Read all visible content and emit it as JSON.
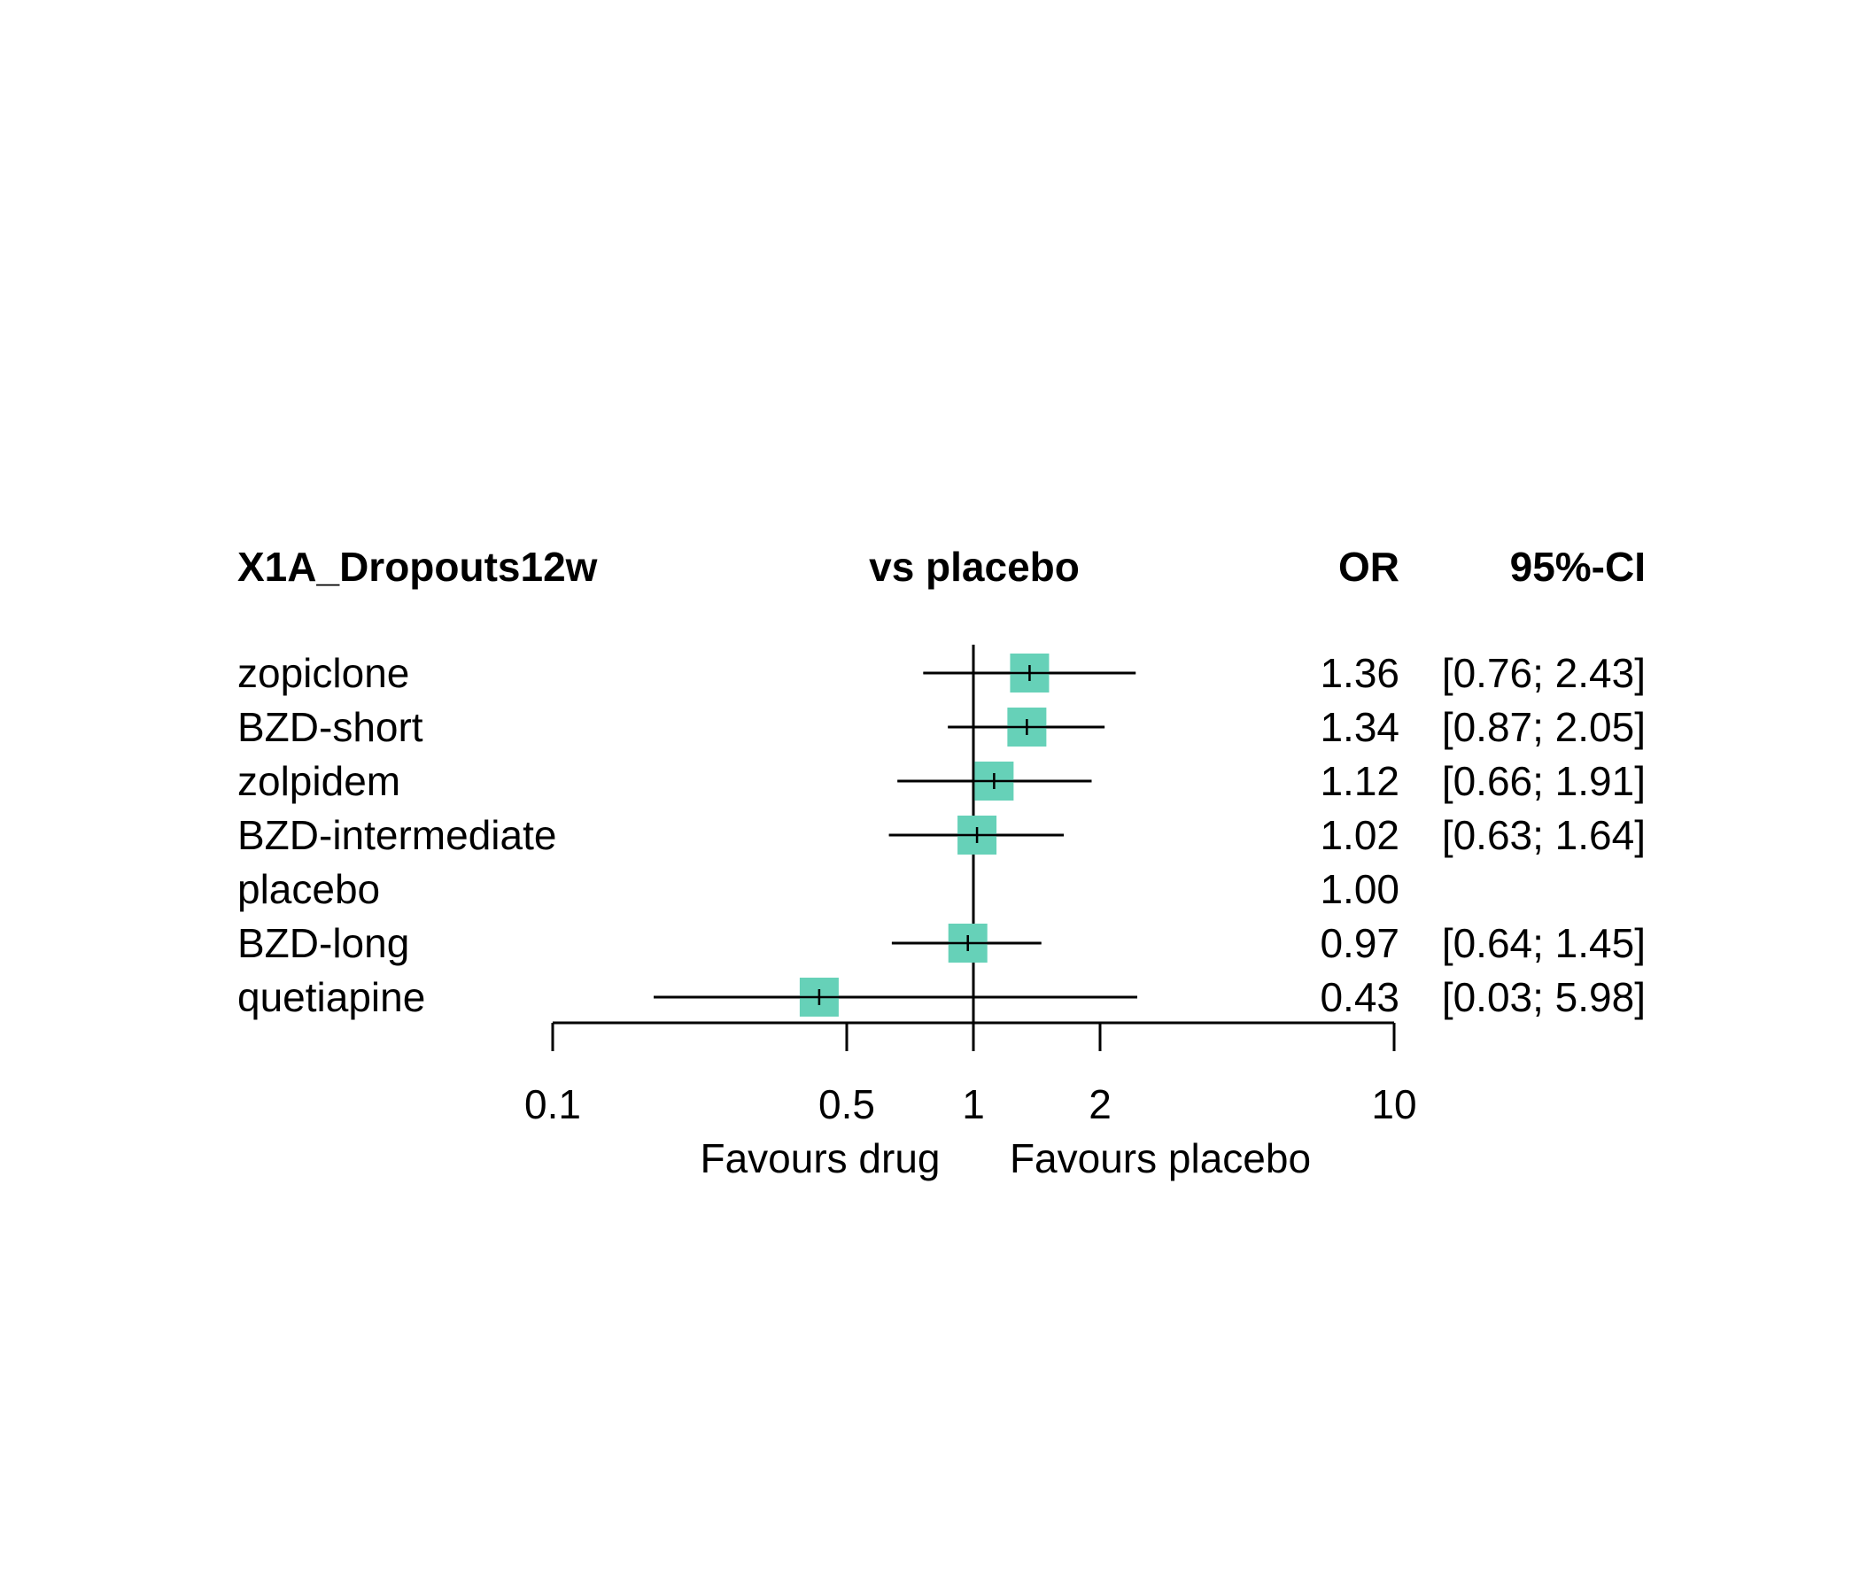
{
  "chart_data": {
    "type": "forest",
    "header": {
      "label_col": "X1A_Dropouts12w",
      "plot_col": "vs placebo",
      "or_col": "OR",
      "ci_col": "95%-CI"
    },
    "scale": "log",
    "reference_value": 1,
    "xlim": [
      0.1,
      10
    ],
    "ticks": [
      {
        "value": 0.1,
        "label": "0.1"
      },
      {
        "value": 0.5,
        "label": "0.5"
      },
      {
        "value": 1,
        "label": "1"
      },
      {
        "value": 2,
        "label": "2"
      },
      {
        "value": 10,
        "label": "10"
      }
    ],
    "xlabel_left": "Favours drug",
    "xlabel_right": "Favours placebo",
    "marker_color": "#66d1b8",
    "rows": [
      {
        "name": "zopiclone",
        "or": 1.36,
        "lo": 0.76,
        "hi": 2.43,
        "or_text": "1.36",
        "ci_text": "[0.76; 2.43]"
      },
      {
        "name": "BZD-short",
        "or": 1.34,
        "lo": 0.87,
        "hi": 2.05,
        "or_text": "1.34",
        "ci_text": "[0.87; 2.05]"
      },
      {
        "name": "zolpidem",
        "or": 1.12,
        "lo": 0.66,
        "hi": 1.91,
        "or_text": "1.12",
        "ci_text": "[0.66; 1.91]"
      },
      {
        "name": "BZD-intermediate",
        "or": 1.02,
        "lo": 0.63,
        "hi": 1.64,
        "or_text": "1.02",
        "ci_text": "[0.63; 1.64]"
      },
      {
        "name": "placebo",
        "or": 1.0,
        "lo": null,
        "hi": null,
        "or_text": "1.00",
        "ci_text": ""
      },
      {
        "name": "BZD-long",
        "or": 0.97,
        "lo": 0.64,
        "hi": 1.45,
        "or_text": "0.97",
        "ci_text": "[0.64; 1.45]"
      },
      {
        "name": "quetiapine",
        "or": 0.43,
        "lo": 0.03,
        "hi": 5.98,
        "or_text": "0.43",
        "ci_text": "[0.03; 5.98]"
      }
    ]
  }
}
